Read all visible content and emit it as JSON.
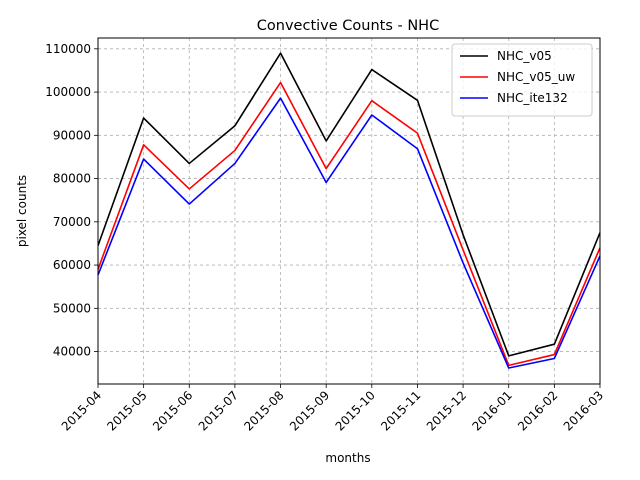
{
  "chart_data": {
    "type": "line",
    "title": "Convective Counts - NHC",
    "xlabel": "months",
    "ylabel": "pixel counts",
    "categories": [
      "2015-04",
      "2015-05",
      "2015-06",
      "2015-07",
      "2015-08",
      "2015-09",
      "2015-10",
      "2015-11",
      "2015-12",
      "2016-01",
      "2016-02",
      "2016-03"
    ],
    "ylim": [
      32500,
      112500
    ],
    "yticks": [
      40000,
      50000,
      60000,
      70000,
      80000,
      90000,
      100000,
      110000
    ],
    "ytick_labels": [
      "40000",
      "50000",
      "60000",
      "70000",
      "80000",
      "90000",
      "100000",
      "110000"
    ],
    "grid": true,
    "legend_position": "top-right",
    "series": [
      {
        "name": "NHC_v05",
        "color": "#000000",
        "values": [
          64500,
          94000,
          83500,
          92200,
          109000,
          88700,
          105200,
          98100,
          67000,
          39000,
          41700,
          67500
        ]
      },
      {
        "name": "NHC_v05_uw",
        "color": "#ff0000",
        "values": [
          59000,
          87800,
          77600,
          86500,
          102200,
          82300,
          98000,
          90500,
          63500,
          36800,
          39300,
          64000
        ]
      },
      {
        "name": "NHC_ite132",
        "color": "#0000ff",
        "values": [
          57700,
          84500,
          74100,
          83500,
          98600,
          79100,
          94700,
          86900,
          60500,
          36200,
          38400,
          62100
        ]
      }
    ]
  }
}
